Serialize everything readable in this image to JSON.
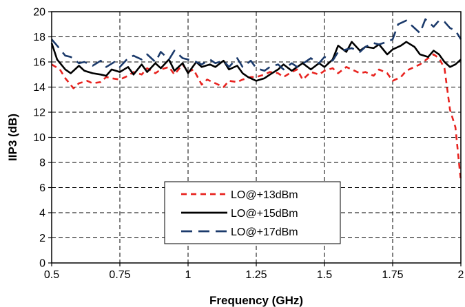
{
  "chart_data": {
    "type": "line",
    "xlabel": "Frequency (GHz)",
    "ylabel": "IIP3 (dB)",
    "xlim": [
      0.5,
      2.0
    ],
    "ylim": [
      0,
      20
    ],
    "x_ticks": [
      0.5,
      0.75,
      1.0,
      1.25,
      1.5,
      1.75,
      2.0
    ],
    "x_tick_labels": [
      "0.5",
      "0.75",
      "1",
      "1.25",
      "1.5",
      "1.75",
      "2"
    ],
    "y_ticks": [
      0,
      2,
      4,
      6,
      8,
      10,
      12,
      14,
      16,
      18,
      20
    ],
    "y_tick_labels": [
      "0",
      "2",
      "4",
      "6",
      "8",
      "10",
      "12",
      "14",
      "16",
      "18",
      "20"
    ],
    "grid": true,
    "legend_position": "bottom-center",
    "series": [
      {
        "name": "LO@+13dBm",
        "color": "#e8231f",
        "dash": "dashed",
        "x": [
          0.5,
          0.53,
          0.55,
          0.58,
          0.6,
          0.63,
          0.65,
          0.68,
          0.7,
          0.72,
          0.75,
          0.78,
          0.8,
          0.83,
          0.85,
          0.88,
          0.9,
          0.93,
          0.95,
          0.98,
          1.0,
          1.02,
          1.05,
          1.07,
          1.1,
          1.13,
          1.15,
          1.18,
          1.2,
          1.23,
          1.25,
          1.28,
          1.3,
          1.33,
          1.35,
          1.38,
          1.4,
          1.42,
          1.45,
          1.48,
          1.5,
          1.53,
          1.55,
          1.58,
          1.6,
          1.63,
          1.65,
          1.68,
          1.7,
          1.73,
          1.75,
          1.78,
          1.8,
          1.83,
          1.85,
          1.88,
          1.9,
          1.92,
          1.94,
          1.96,
          1.98,
          2.0
        ],
        "y": [
          15.8,
          15.4,
          14.7,
          13.9,
          14.3,
          14.5,
          14.3,
          14.4,
          14.8,
          14.7,
          14.6,
          14.9,
          15.2,
          15.0,
          15.5,
          15.1,
          15.4,
          15.6,
          15.0,
          15.8,
          15.2,
          15.4,
          14.2,
          14.6,
          14.3,
          14.0,
          14.5,
          14.4,
          14.6,
          14.8,
          14.8,
          15.0,
          15.2,
          15.1,
          14.8,
          15.2,
          15.4,
          14.6,
          15.2,
          15.0,
          15.3,
          15.5,
          15.1,
          15.6,
          15.4,
          15.1,
          15.2,
          14.9,
          15.4,
          15.1,
          14.5,
          14.8,
          15.3,
          15.6,
          15.8,
          16.3,
          16.6,
          16.3,
          15.5,
          12.2,
          10.8,
          6.5
        ]
      },
      {
        "name": "LO@+15dBm",
        "color": "#000000",
        "dash": "solid",
        "x": [
          0.5,
          0.52,
          0.55,
          0.57,
          0.6,
          0.62,
          0.65,
          0.68,
          0.7,
          0.72,
          0.75,
          0.78,
          0.8,
          0.83,
          0.85,
          0.88,
          0.9,
          0.93,
          0.95,
          0.98,
          1.0,
          1.03,
          1.05,
          1.08,
          1.1,
          1.13,
          1.15,
          1.18,
          1.2,
          1.22,
          1.25,
          1.28,
          1.3,
          1.33,
          1.35,
          1.38,
          1.4,
          1.42,
          1.45,
          1.48,
          1.5,
          1.53,
          1.55,
          1.58,
          1.6,
          1.63,
          1.65,
          1.68,
          1.7,
          1.73,
          1.75,
          1.78,
          1.8,
          1.83,
          1.85,
          1.88,
          1.9,
          1.92,
          1.94,
          1.96,
          1.98,
          2.0
        ],
        "y": [
          17.5,
          16.2,
          15.4,
          15.1,
          15.7,
          15.3,
          15.1,
          15.0,
          14.9,
          15.4,
          15.2,
          15.6,
          15.0,
          15.8,
          15.2,
          15.9,
          15.5,
          16.2,
          15.3,
          15.9,
          15.1,
          16.0,
          15.6,
          15.8,
          15.6,
          16.1,
          15.4,
          15.7,
          15.1,
          14.8,
          14.5,
          14.7,
          15.0,
          15.4,
          15.8,
          15.3,
          15.6,
          15.9,
          15.4,
          15.9,
          15.6,
          16.2,
          17.3,
          16.8,
          17.6,
          16.9,
          17.2,
          17.1,
          17.4,
          16.6,
          17.0,
          17.3,
          17.6,
          17.2,
          16.6,
          16.4,
          16.9,
          16.6,
          16.0,
          15.6,
          15.8,
          16.2
        ]
      },
      {
        "name": "LO@+17dBm",
        "color": "#1b3a6b",
        "dash": "longdash",
        "x": [
          0.5,
          0.52,
          0.55,
          0.57,
          0.6,
          0.62,
          0.65,
          0.68,
          0.7,
          0.73,
          0.75,
          0.78,
          0.8,
          0.83,
          0.85,
          0.88,
          0.9,
          0.93,
          0.95,
          0.98,
          1.0,
          1.03,
          1.05,
          1.08,
          1.1,
          1.13,
          1.15,
          1.18,
          1.2,
          1.23,
          1.25,
          1.28,
          1.3,
          1.33,
          1.35,
          1.38,
          1.4,
          1.43,
          1.45,
          1.48,
          1.5,
          1.53,
          1.55,
          1.58,
          1.6,
          1.63,
          1.65,
          1.68,
          1.7,
          1.73,
          1.75,
          1.77,
          1.8,
          1.82,
          1.85,
          1.87,
          1.9,
          1.92,
          1.94,
          1.96,
          1.98,
          2.0
        ],
        "y": [
          17.8,
          17.3,
          16.5,
          16.4,
          15.9,
          16.0,
          15.7,
          16.1,
          15.6,
          16.0,
          15.6,
          16.3,
          16.5,
          16.2,
          16.6,
          16.0,
          16.8,
          16.2,
          16.9,
          16.3,
          16.2,
          16.0,
          15.8,
          16.2,
          15.9,
          16.1,
          15.6,
          16.3,
          15.6,
          16.1,
          15.5,
          15.3,
          15.6,
          15.8,
          15.4,
          15.9,
          15.6,
          16.0,
          16.3,
          15.9,
          16.4,
          16.1,
          16.8,
          17.0,
          17.1,
          16.8,
          17.2,
          17.5,
          17.4,
          17.6,
          17.8,
          19.0,
          19.3,
          18.9,
          18.3,
          19.4,
          18.8,
          19.3,
          19.2,
          18.7,
          18.5,
          17.8
        ]
      }
    ]
  }
}
